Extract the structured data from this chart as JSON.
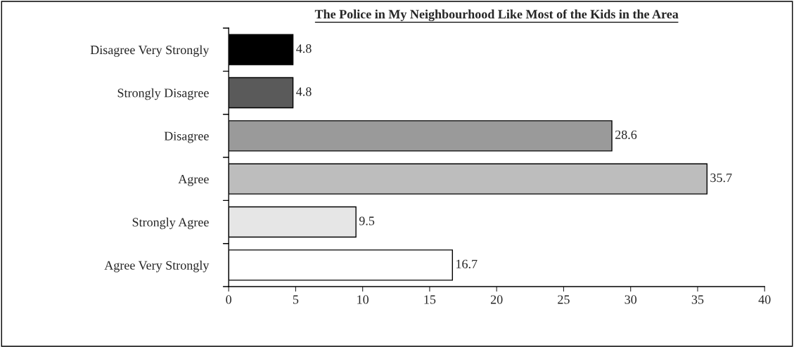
{
  "chart_data": {
    "type": "bar",
    "orientation": "horizontal",
    "title": "The Police in My Neighbourhood Like Most of the Kids in the Area",
    "categories": [
      "Disagree Very Strongly",
      "Strongly Disagree",
      "Disagree",
      "Agree",
      "Strongly Agree",
      "Agree Very Strongly"
    ],
    "values": [
      4.8,
      4.8,
      28.6,
      35.7,
      9.5,
      16.7
    ],
    "colors": [
      "#000000",
      "#5a5a5a",
      "#9a9a9a",
      "#bdbdbd",
      "#e6e6e6",
      "#ffffff"
    ],
    "xlim": [
      0,
      40
    ],
    "xticks": [
      0,
      5,
      10,
      15,
      20,
      25,
      30,
      35,
      40
    ],
    "data_labels": true,
    "grid": false,
    "legend": false
  }
}
